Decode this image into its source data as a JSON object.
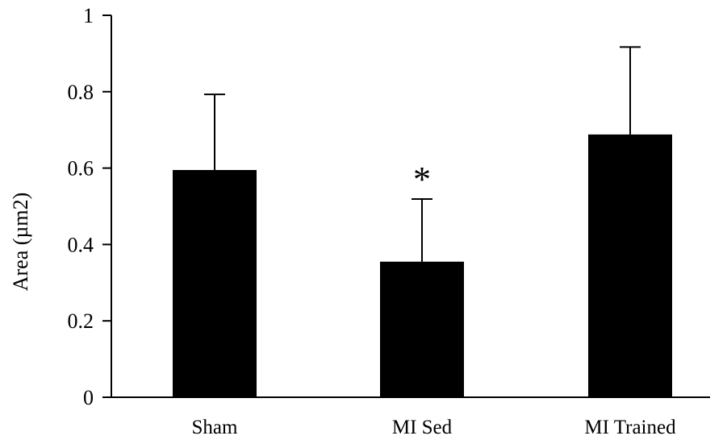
{
  "chart_data": {
    "type": "bar",
    "title": "",
    "xlabel": "",
    "ylabel": "Area  (µm2)",
    "categories": [
      "Sham",
      "MI Sed",
      "MI Trained"
    ],
    "values": [
      0.595,
      0.355,
      0.688
    ],
    "error_upper": [
      0.793,
      0.519,
      0.917
    ],
    "ylim": [
      0,
      1
    ],
    "yticks": [
      0,
      0.2,
      0.4,
      0.6,
      0.8,
      1
    ],
    "ytick_labels": [
      "0",
      "0.2",
      "0.4",
      "0.6",
      "0.8",
      "1"
    ],
    "grid": false,
    "legend": "none",
    "bar_color": "#000000",
    "annotations": [
      {
        "category": "MI Sed",
        "text": "*"
      }
    ]
  }
}
